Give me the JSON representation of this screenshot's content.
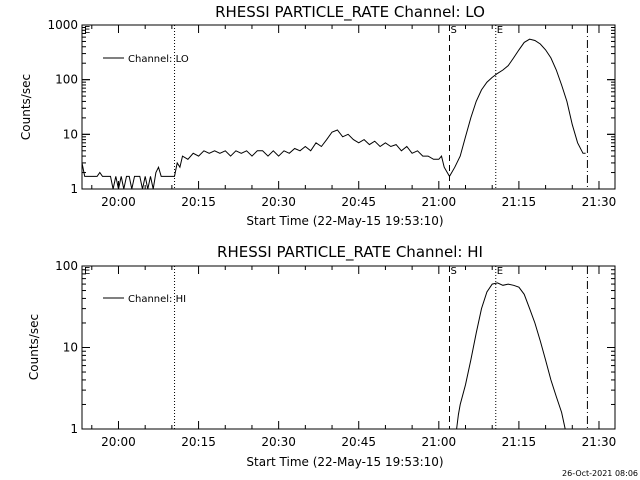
{
  "colors": {
    "background": "#ffffff",
    "foreground": "#000000"
  },
  "footer": {
    "timestamp": "26-Oct-2021 08:06"
  },
  "chart_data": [
    {
      "type": "line",
      "title": "RHESSI PARTICLE_RATE Channel: LO",
      "xlabel": "Start Time (22-May-15 19:53:10)",
      "ylabel": "Counts/sec",
      "yscale": "log",
      "grid": false,
      "legend_position": "top-left",
      "x_tick_labels": [
        "20:00",
        "20:15",
        "20:30",
        "20:45",
        "21:00",
        "21:15",
        "21:30"
      ],
      "y_tick_labels": [
        "1",
        "10",
        "100",
        "1000"
      ],
      "markers": [
        {
          "label": "E",
          "time": "19:53:10",
          "style": "none"
        },
        {
          "label": "",
          "time": "20:10:30",
          "style": "dotted"
        },
        {
          "label": "S",
          "time": "21:02:00",
          "style": "dashed"
        },
        {
          "label": "E",
          "time": "21:10:40",
          "style": "dotted"
        },
        {
          "label": "",
          "time": "21:27:50",
          "style": "dashdot"
        }
      ],
      "series": [
        {
          "name": "Channel: LO",
          "points": [
            [
              "19:53:10",
              3
            ],
            [
              "19:53:40",
              1.7
            ],
            [
              "19:56:00",
              1.7
            ],
            [
              "19:56:30",
              2
            ],
            [
              "19:57:00",
              1.7
            ],
            [
              "19:58:30",
              1.7
            ],
            [
              "19:59:00",
              1
            ],
            [
              "19:59:30",
              1.7
            ],
            [
              "20:00:00",
              1
            ],
            [
              "20:00:30",
              1.7
            ],
            [
              "20:01:00",
              1
            ],
            [
              "20:01:30",
              1.7
            ],
            [
              "20:02:00",
              1.7
            ],
            [
              "20:02:30",
              1
            ],
            [
              "20:03:00",
              1.7
            ],
            [
              "20:04:00",
              1.7
            ],
            [
              "20:04:30",
              1
            ],
            [
              "20:05:00",
              1.7
            ],
            [
              "20:05:30",
              1
            ],
            [
              "20:06:00",
              1.7
            ],
            [
              "20:06:30",
              1
            ],
            [
              "20:07:00",
              2
            ],
            [
              "20:07:30",
              2.5
            ],
            [
              "20:08:00",
              1.7
            ],
            [
              "20:10:30",
              1.7
            ],
            [
              "20:11:00",
              3
            ],
            [
              "20:11:30",
              2.5
            ],
            [
              "20:12:00",
              4
            ],
            [
              "20:13:00",
              3.5
            ],
            [
              "20:14:00",
              4.5
            ],
            [
              "20:15:00",
              4
            ],
            [
              "20:16:00",
              5
            ],
            [
              "20:17:00",
              4.5
            ],
            [
              "20:18:00",
              5
            ],
            [
              "20:19:00",
              4.5
            ],
            [
              "20:20:00",
              5
            ],
            [
              "20:21:00",
              4
            ],
            [
              "20:22:00",
              5
            ],
            [
              "20:23:00",
              4.5
            ],
            [
              "20:24:00",
              5
            ],
            [
              "20:25:00",
              4
            ],
            [
              "20:26:00",
              5
            ],
            [
              "20:27:00",
              5
            ],
            [
              "20:28:00",
              4
            ],
            [
              "20:29:00",
              5
            ],
            [
              "20:30:00",
              4
            ],
            [
              "20:31:00",
              5
            ],
            [
              "20:32:00",
              4.5
            ],
            [
              "20:33:00",
              5.5
            ],
            [
              "20:34:00",
              5
            ],
            [
              "20:35:00",
              6
            ],
            [
              "20:36:00",
              5
            ],
            [
              "20:37:00",
              7
            ],
            [
              "20:38:00",
              6
            ],
            [
              "20:39:00",
              8
            ],
            [
              "20:40:00",
              11
            ],
            [
              "20:41:00",
              12
            ],
            [
              "20:42:00",
              9
            ],
            [
              "20:43:00",
              10
            ],
            [
              "20:44:00",
              8
            ],
            [
              "20:45:00",
              7
            ],
            [
              "20:46:00",
              8
            ],
            [
              "20:47:00",
              6.5
            ],
            [
              "20:48:00",
              7.5
            ],
            [
              "20:49:00",
              6
            ],
            [
              "20:50:00",
              7
            ],
            [
              "20:51:00",
              6
            ],
            [
              "20:52:00",
              6.5
            ],
            [
              "20:53:00",
              5
            ],
            [
              "20:54:00",
              6
            ],
            [
              "20:55:00",
              4.5
            ],
            [
              "20:56:00",
              5
            ],
            [
              "20:57:00",
              4
            ],
            [
              "20:58:00",
              4
            ],
            [
              "20:59:00",
              3.5
            ],
            [
              "21:00:00",
              3.5
            ],
            [
              "21:00:30",
              4
            ],
            [
              "21:01:00",
              2.5
            ],
            [
              "21:02:00",
              1.7
            ],
            [
              "21:03:00",
              2.5
            ],
            [
              "21:04:00",
              4
            ],
            [
              "21:05:00",
              9
            ],
            [
              "21:06:00",
              20
            ],
            [
              "21:07:00",
              40
            ],
            [
              "21:08:00",
              65
            ],
            [
              "21:09:00",
              90
            ],
            [
              "21:10:00",
              110
            ],
            [
              "21:11:00",
              130
            ],
            [
              "21:12:00",
              150
            ],
            [
              "21:13:00",
              180
            ],
            [
              "21:14:00",
              250
            ],
            [
              "21:15:00",
              350
            ],
            [
              "21:16:00",
              480
            ],
            [
              "21:17:00",
              550
            ],
            [
              "21:18:00",
              520
            ],
            [
              "21:19:00",
              450
            ],
            [
              "21:20:00",
              350
            ],
            [
              "21:21:00",
              250
            ],
            [
              "21:22:00",
              150
            ],
            [
              "21:23:00",
              80
            ],
            [
              "21:24:00",
              40
            ],
            [
              "21:25:00",
              15
            ],
            [
              "21:26:00",
              7
            ],
            [
              "21:27:00",
              4.5
            ],
            [
              "21:27:30",
              4.5
            ]
          ]
        }
      ]
    },
    {
      "type": "line",
      "title": "RHESSI PARTICLE_RATE Channel: HI",
      "xlabel": "Start Time (22-May-15 19:53:10)",
      "ylabel": "Counts/sec",
      "yscale": "log",
      "grid": false,
      "legend_position": "top-left",
      "x_tick_labels": [
        "20:00",
        "20:15",
        "20:30",
        "20:45",
        "21:00",
        "21:15",
        "21:30"
      ],
      "y_tick_labels": [
        "1",
        "10",
        "100"
      ],
      "markers": [
        {
          "label": "E",
          "time": "19:53:10",
          "style": "none"
        },
        {
          "label": "",
          "time": "20:10:30",
          "style": "dotted"
        },
        {
          "label": "S",
          "time": "21:02:00",
          "style": "dashed"
        },
        {
          "label": "E",
          "time": "21:10:40",
          "style": "dotted"
        },
        {
          "label": "",
          "time": "21:27:50",
          "style": "dashdot"
        }
      ],
      "series": [
        {
          "name": "Channel: HI",
          "points": [
            [
              "21:03:20",
              1
            ],
            [
              "21:03:40",
              1.5
            ],
            [
              "21:04:00",
              2
            ],
            [
              "21:05:00",
              3.5
            ],
            [
              "21:06:00",
              7
            ],
            [
              "21:07:00",
              15
            ],
            [
              "21:08:00",
              30
            ],
            [
              "21:09:00",
              48
            ],
            [
              "21:10:00",
              60
            ],
            [
              "21:11:00",
              62
            ],
            [
              "21:12:00",
              58
            ],
            [
              "21:13:00",
              60
            ],
            [
              "21:14:00",
              58
            ],
            [
              "21:15:00",
              55
            ],
            [
              "21:16:00",
              45
            ],
            [
              "21:17:00",
              30
            ],
            [
              "21:18:00",
              20
            ],
            [
              "21:19:00",
              12
            ],
            [
              "21:20:00",
              7
            ],
            [
              "21:21:00",
              4
            ],
            [
              "21:22:00",
              2.5
            ],
            [
              "21:23:00",
              1.6
            ],
            [
              "21:23:40",
              1
            ]
          ]
        }
      ]
    }
  ]
}
